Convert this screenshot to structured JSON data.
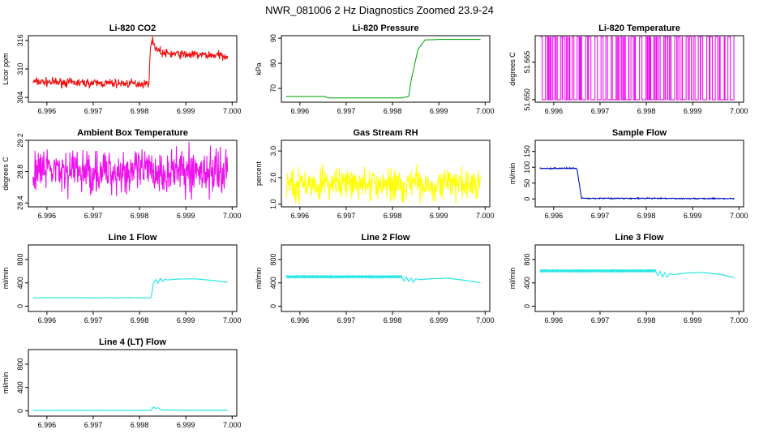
{
  "figure_title": "NWR_081006  2 Hz Diagnostics Zoomed 23.9-24",
  "chart_data": [
    {
      "id": "co2",
      "type": "line",
      "title": "Li-820 CO2",
      "ylabel": "Licor ppm",
      "color": "#ee1111",
      "xlim": [
        6.9956,
        7.0001
      ],
      "ylim": [
        303.0,
        317.0
      ],
      "xticks": [
        6.996,
        6.997,
        6.998,
        6.999,
        7.0
      ],
      "xtick_labels": [
        "6.996",
        "6.997",
        "6.998",
        "6.999",
        "7.000"
      ],
      "yticks": [
        304,
        310,
        316
      ],
      "ytick_labels": [
        "304",
        "310",
        "316"
      ],
      "series": [
        {
          "name": "CO2",
          "x": [
            6.9957,
            6.997,
            6.9982,
            6.99825,
            6.99835,
            6.9985,
            6.999,
            6.9995,
            6.9999
          ],
          "y": [
            307.3,
            307.0,
            306.9,
            316.3,
            314.5,
            313.3,
            313.0,
            312.9,
            312.8
          ],
          "noise": 0.45
        }
      ]
    },
    {
      "id": "pressure",
      "type": "line",
      "title": "Li-820 Pressure",
      "ylabel": "kPa",
      "color": "#11aa11",
      "xlim": [
        6.9956,
        7.0001
      ],
      "ylim": [
        64.5,
        91.0
      ],
      "xticks": [
        6.996,
        6.997,
        6.998,
        6.999,
        7.0
      ],
      "xtick_labels": [
        "6.996",
        "6.997",
        "6.998",
        "6.999",
        "7.000"
      ],
      "yticks": [
        70,
        80,
        90
      ],
      "ytick_labels": [
        "70",
        "80",
        "90"
      ],
      "series": [
        {
          "name": "Pressure",
          "x": [
            6.9957,
            6.99655,
            6.9966,
            6.9982,
            6.99835,
            6.9984,
            6.99855,
            6.9987,
            6.999,
            6.9999
          ],
          "y": [
            66.8,
            66.8,
            66.2,
            66.2,
            66.8,
            73.0,
            85.5,
            89.3,
            89.5,
            89.5
          ],
          "noise": 0.0
        }
      ]
    },
    {
      "id": "temp",
      "type": "line",
      "title": "Li-820 Temperature",
      "ylabel": "degrees C",
      "color": "#ee11ee",
      "xlim": [
        6.9956,
        7.0001
      ],
      "ylim": [
        51.649,
        51.6755
      ],
      "xticks": [
        6.996,
        6.997,
        6.998,
        6.999,
        7.0
      ],
      "xtick_labels": [
        "6.996",
        "6.997",
        "6.998",
        "6.999",
        "7.000"
      ],
      "yticks": [
        51.65,
        51.665
      ],
      "ytick_labels": [
        "51.650",
        "51.665"
      ],
      "series": [
        {
          "name": "Temperature",
          "x": [
            6.9957,
            6.9999
          ],
          "y": [
            51.65,
            51.675
          ],
          "pattern": "two-level"
        }
      ]
    },
    {
      "id": "boxtemp",
      "type": "line",
      "title": "Ambient Box Temperature",
      "ylabel": "degrees C",
      "color": "#ee11ee",
      "xlim": [
        6.9956,
        7.0001
      ],
      "ylim": [
        28.35,
        29.2
      ],
      "xticks": [
        6.996,
        6.997,
        6.998,
        6.999,
        7.0
      ],
      "xtick_labels": [
        "6.996",
        "6.997",
        "6.998",
        "6.999",
        "7.000"
      ],
      "yticks": [
        28.4,
        28.8,
        29.2
      ],
      "ytick_labels": [
        "28.4",
        "28.8",
        "29.2"
      ],
      "series": [
        {
          "name": "Box temperature",
          "x": [
            6.9957,
            6.9999
          ],
          "y": [
            28.8,
            28.8
          ],
          "noise": 0.14
        }
      ]
    },
    {
      "id": "rh",
      "type": "line",
      "title": "Gas Stream RH",
      "ylabel": "percent",
      "color": "#ffff00",
      "xlim": [
        6.9956,
        7.0001
      ],
      "ylim": [
        0.9,
        3.4
      ],
      "xticks": [
        6.996,
        6.997,
        6.998,
        6.999,
        7.0
      ],
      "xtick_labels": [
        "6.996",
        "6.997",
        "6.998",
        "6.999",
        "7.000"
      ],
      "yticks": [
        1.0,
        2.0,
        3.0
      ],
      "ytick_labels": [
        "1.0",
        "2.0",
        "3.0"
      ],
      "series": [
        {
          "name": "RH",
          "x": [
            6.9957,
            6.9999
          ],
          "y": [
            1.75,
            1.75
          ],
          "noise": 0.3
        }
      ]
    },
    {
      "id": "sampleflow",
      "type": "line",
      "title": "Sample Flow",
      "ylabel": "ml/min",
      "color": "#0011bb",
      "xlim": [
        6.9956,
        7.0001
      ],
      "ylim": [
        -25,
        185
      ],
      "xticks": [
        6.996,
        6.997,
        6.998,
        6.999,
        7.0
      ],
      "xtick_labels": [
        "6.996",
        "6.997",
        "6.998",
        "6.999",
        "7.000"
      ],
      "yticks": [
        0,
        50,
        100,
        150
      ],
      "ytick_labels": [
        "0",
        "50",
        "100",
        "150"
      ],
      "series": [
        {
          "name": "Sample flow",
          "x": [
            6.9957,
            6.99645,
            6.9965,
            6.9966,
            6.9999
          ],
          "y": [
            96,
            97,
            96,
            2,
            1
          ],
          "noise": 0.9
        }
      ]
    },
    {
      "id": "line1",
      "type": "line",
      "title": "Line 1 Flow",
      "ylabel": "ml/min",
      "color": "#22e5e5",
      "xlim": [
        6.9956,
        7.0001
      ],
      "ylim": [
        -90,
        1050
      ],
      "xticks": [
        6.996,
        6.997,
        6.998,
        6.999,
        7.0
      ],
      "xtick_labels": [
        "6.996",
        "6.997",
        "6.998",
        "6.999",
        "7.000"
      ],
      "yticks": [
        0,
        400,
        800
      ],
      "ytick_labels": [
        "0",
        "400",
        "800"
      ],
      "series": [
        {
          "name": "Line 1",
          "x": [
            6.9957,
            6.99825,
            6.9983,
            6.99835,
            6.9984,
            6.99845,
            6.9985,
            6.99855,
            6.9986,
            6.9988,
            6.9992,
            6.9996,
            6.9999
          ],
          "y": [
            145,
            145,
            390,
            460,
            390,
            480,
            420,
            470,
            450,
            465,
            470,
            440,
            410
          ],
          "noise": 2.0
        }
      ]
    },
    {
      "id": "line2",
      "type": "line",
      "title": "Line 2 Flow",
      "ylabel": "ml/min",
      "color": "#22e5e5",
      "xlim": [
        6.9956,
        7.0001
      ],
      "ylim": [
        -90,
        1050
      ],
      "xticks": [
        6.996,
        6.997,
        6.998,
        6.999,
        7.0
      ],
      "xtick_labels": [
        "6.996",
        "6.997",
        "6.998",
        "6.999",
        "7.000"
      ],
      "yticks": [
        0,
        400,
        800
      ],
      "ytick_labels": [
        "0",
        "400",
        "800"
      ],
      "series": [
        {
          "name": "Line 2",
          "x": [
            6.9957,
            6.9982,
            6.99825,
            6.9983,
            6.99835,
            6.9984,
            6.99845,
            6.9985,
            6.9986,
            6.9988,
            6.9992,
            6.9996,
            6.9999
          ],
          "y": [
            505,
            505,
            430,
            500,
            420,
            490,
            410,
            470,
            455,
            470,
            480,
            440,
            400
          ],
          "noise": 2.0,
          "ripple": 18
        }
      ]
    },
    {
      "id": "line3",
      "type": "line",
      "title": "Line 3 Flow",
      "ylabel": "ml/min",
      "color": "#22e5e5",
      "xlim": [
        6.9956,
        7.0001
      ],
      "ylim": [
        -90,
        1050
      ],
      "xticks": [
        6.996,
        6.997,
        6.998,
        6.999,
        7.0
      ],
      "xtick_labels": [
        "6.996",
        "6.997",
        "6.998",
        "6.999",
        "7.000"
      ],
      "yticks": [
        0,
        400,
        800
      ],
      "ytick_labels": [
        "0",
        "400",
        "800"
      ],
      "series": [
        {
          "name": "Line 3",
          "x": [
            6.9957,
            6.9982,
            6.99825,
            6.9983,
            6.99835,
            6.9984,
            6.99845,
            6.9985,
            6.9986,
            6.9988,
            6.9992,
            6.9996,
            6.9999
          ],
          "y": [
            605,
            605,
            520,
            600,
            500,
            580,
            495,
            560,
            540,
            565,
            580,
            545,
            490
          ],
          "noise": 2.0,
          "ripple": 18
        }
      ]
    },
    {
      "id": "line4",
      "type": "line",
      "title": "Line 4 (LT) Flow",
      "ylabel": "ml/min",
      "color": "#22e5e5",
      "xlim": [
        6.9956,
        7.0001
      ],
      "ylim": [
        -90,
        1050
      ],
      "xticks": [
        6.996,
        6.997,
        6.998,
        6.999,
        7.0
      ],
      "xtick_labels": [
        "6.996",
        "6.997",
        "6.998",
        "6.999",
        "7.000"
      ],
      "yticks": [
        0,
        400,
        800
      ],
      "ytick_labels": [
        "0",
        "400",
        "800"
      ],
      "series": [
        {
          "name": "Line 4",
          "x": [
            6.9957,
            6.99825,
            6.9983,
            6.99835,
            6.9984,
            6.99845,
            6.9985,
            6.9999
          ],
          "y": [
            8,
            8,
            70,
            40,
            55,
            25,
            15,
            10
          ],
          "noise": 2.0
        }
      ]
    }
  ]
}
